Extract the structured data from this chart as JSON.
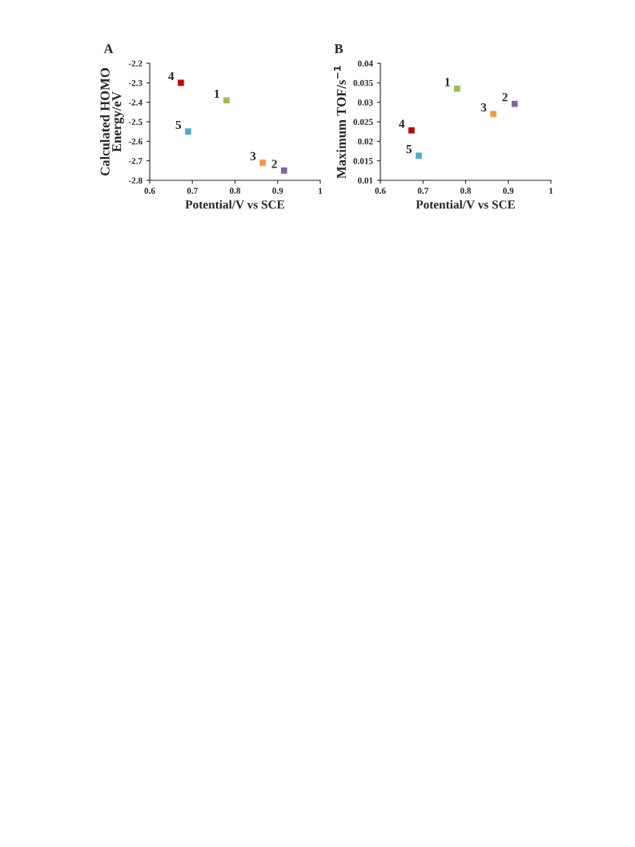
{
  "chart_data": [
    {
      "type": "scatter",
      "title": "A",
      "xlabel": "Potential/V vs SCE",
      "ylabel": "Calculated HOMO\nEnergy/eV",
      "series": [
        {
          "x": [
            0.78,
            0.915,
            0.865,
            0.673,
            0.69
          ],
          "values": [
            -2.39,
            -2.75,
            -2.71,
            -2.3,
            -2.55
          ],
          "colors": [
            "#9bbb59",
            "#8064a2",
            "#f79646",
            "#c00000",
            "#4bacc6"
          ]
        }
      ],
      "xlim": [
        0.6,
        1
      ],
      "xticks": [
        0.6,
        0.7,
        0.8,
        0.9,
        1
      ],
      "ylim": [
        -2.8,
        -2.2
      ],
      "yticks": [
        -2.8,
        -2.7,
        -2.6,
        -2.5,
        -2.4,
        -2.3,
        -2.2
      ],
      "marker": "square",
      "grid": false,
      "annotations": [
        {
          "text": "1",
          "x": 0.78,
          "y": -2.39
        },
        {
          "text": "2",
          "x": 0.915,
          "y": -2.75
        },
        {
          "text": "3",
          "x": 0.865,
          "y": -2.71
        },
        {
          "text": "4",
          "x": 0.673,
          "y": -2.3
        },
        {
          "text": "5",
          "x": 0.69,
          "y": -2.55
        }
      ]
    },
    {
      "type": "scatter",
      "title": "B",
      "xlabel": "Potential/V vs SCE",
      "ylabel": "Maximum TOF/s$^{−1}$",
      "series": [
        {
          "x": [
            0.78,
            0.915,
            0.865,
            0.673,
            0.69
          ],
          "values": [
            0.0335,
            0.0296,
            0.027,
            0.0228,
            0.0163
          ],
          "colors": [
            "#9bbb59",
            "#8064a2",
            "#f79646",
            "#c00000",
            "#4bacc6"
          ]
        }
      ],
      "xlim": [
        0.6,
        1
      ],
      "xticks": [
        0.6,
        0.7,
        0.8,
        0.9,
        1
      ],
      "ylim": [
        0.01,
        0.04
      ],
      "yticks": [
        0.01,
        0.015,
        0.02,
        0.025,
        0.03,
        0.035,
        0.04
      ],
      "marker": "square",
      "grid": false,
      "annotations": [
        {
          "text": "1",
          "x": 0.78,
          "y": 0.0335
        },
        {
          "text": "2",
          "x": 0.915,
          "y": 0.0296
        },
        {
          "text": "3",
          "x": 0.865,
          "y": 0.027
        },
        {
          "text": "4",
          "x": 0.673,
          "y": 0.0228
        },
        {
          "text": "5",
          "x": 0.69,
          "y": 0.0163
        }
      ]
    }
  ]
}
